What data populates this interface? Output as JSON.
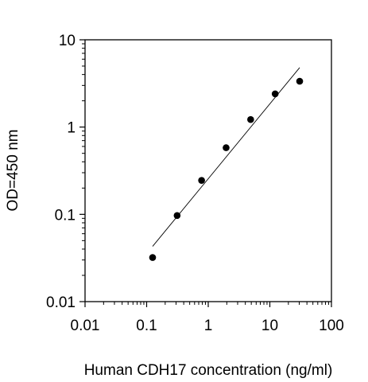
{
  "chart_data": {
    "type": "scatter",
    "title": "",
    "xlabel": "Human CDH17 concentration (ng/ml)",
    "ylabel": "OD=450 nm",
    "x_scale": "log",
    "y_scale": "log",
    "xlim": [
      0.01,
      100
    ],
    "ylim": [
      0.01,
      10
    ],
    "x_ticks": [
      "0.01",
      "0.1",
      "1",
      "10",
      "100"
    ],
    "y_ticks": [
      "0.01",
      "0.1",
      "1",
      "10"
    ],
    "grid": false,
    "legend": "none",
    "series": [
      {
        "x": [
          0.125,
          0.3125,
          0.78,
          1.95,
          4.88,
          12.2,
          30.5
        ],
        "y": [
          0.032,
          0.097,
          0.245,
          0.58,
          1.22,
          2.4,
          3.35
        ]
      }
    ],
    "trendline": {
      "x": [
        0.125,
        30.5
      ],
      "y": [
        0.043,
        4.8
      ]
    },
    "colors": {
      "marker": "#000000",
      "line": "#000000",
      "axis": "#000000"
    }
  }
}
